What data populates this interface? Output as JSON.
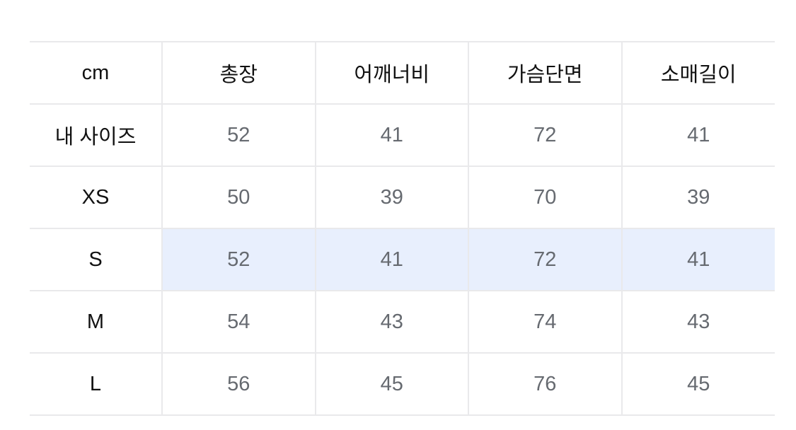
{
  "highlight_color": "#e8effd",
  "header": [
    "cm",
    "총장",
    "어깨너비",
    "가슴단면",
    "소매길이"
  ],
  "rows": [
    {
      "label": "내 사이즈",
      "values": [
        "52",
        "41",
        "72",
        "41"
      ],
      "highlighted": false
    },
    {
      "label": "XS",
      "values": [
        "50",
        "39",
        "70",
        "39"
      ],
      "highlighted": false
    },
    {
      "label": "S",
      "values": [
        "52",
        "41",
        "72",
        "41"
      ],
      "highlighted": true
    },
    {
      "label": "M",
      "values": [
        "54",
        "43",
        "74",
        "43"
      ],
      "highlighted": false
    },
    {
      "label": "L",
      "values": [
        "56",
        "45",
        "76",
        "45"
      ],
      "highlighted": false
    }
  ]
}
